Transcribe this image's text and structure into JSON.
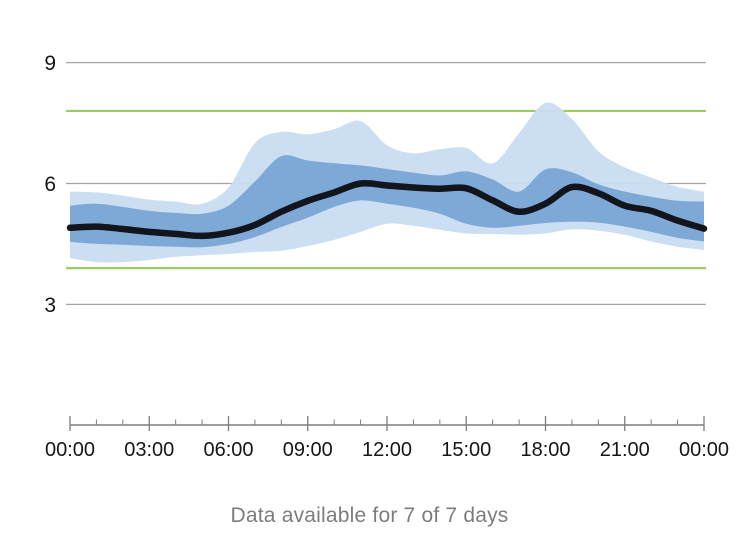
{
  "chart_data": {
    "type": "area",
    "title": "",
    "xlabel": "",
    "ylabel": "",
    "x_hours": [
      0,
      1,
      2,
      3,
      4,
      5,
      6,
      7,
      8,
      9,
      10,
      11,
      12,
      13,
      14,
      15,
      16,
      17,
      18,
      19,
      20,
      21,
      22,
      23,
      24
    ],
    "x_axis": {
      "major_tick_step_hours": 3,
      "minor_tick_step_hours": 1,
      "major_tick_labels": [
        "00:00",
        "03:00",
        "06:00",
        "09:00",
        "12:00",
        "15:00",
        "18:00",
        "21:00",
        "00:00"
      ]
    },
    "y_axis": {
      "ticks": [
        9,
        6,
        3
      ],
      "tick_labels": [
        "9",
        "6",
        "3"
      ],
      "ylim": [
        2.2,
        10.4
      ],
      "grid": true
    },
    "target_range": {
      "low": 3.9,
      "high": 7.8
    },
    "series": [
      {
        "name": "p10",
        "values": [
          4.15,
          4.05,
          4.05,
          4.1,
          4.18,
          4.22,
          4.25,
          4.3,
          4.33,
          4.45,
          4.6,
          4.8,
          5.0,
          4.95,
          4.85,
          4.76,
          4.75,
          4.73,
          4.76,
          4.86,
          4.83,
          4.73,
          4.56,
          4.43,
          4.35
        ]
      },
      {
        "name": "p25",
        "values": [
          4.55,
          4.5,
          4.48,
          4.45,
          4.43,
          4.42,
          4.5,
          4.67,
          4.92,
          5.15,
          5.42,
          5.58,
          5.5,
          5.4,
          5.25,
          5.0,
          4.9,
          4.95,
          5.02,
          5.05,
          5.03,
          4.93,
          4.8,
          4.65,
          4.56
        ]
      },
      {
        "name": "median",
        "values": [
          4.9,
          4.93,
          4.87,
          4.8,
          4.75,
          4.7,
          4.78,
          4.97,
          5.3,
          5.57,
          5.78,
          6.0,
          5.95,
          5.9,
          5.87,
          5.88,
          5.58,
          5.3,
          5.5,
          5.91,
          5.76,
          5.45,
          5.32,
          5.08,
          4.88
        ]
      },
      {
        "name": "p75",
        "values": [
          5.45,
          5.5,
          5.42,
          5.32,
          5.27,
          5.25,
          5.45,
          6.05,
          6.68,
          6.57,
          6.5,
          6.45,
          6.36,
          6.27,
          6.2,
          6.3,
          6.1,
          5.8,
          6.35,
          6.28,
          5.98,
          5.8,
          5.67,
          5.57,
          5.55
        ]
      },
      {
        "name": "p90",
        "values": [
          5.8,
          5.78,
          5.7,
          5.6,
          5.55,
          5.5,
          5.9,
          7.0,
          7.28,
          7.22,
          7.35,
          7.55,
          6.95,
          6.75,
          6.85,
          6.88,
          6.5,
          7.25,
          8.0,
          7.6,
          6.8,
          6.4,
          6.15,
          5.92,
          5.8
        ]
      }
    ],
    "bands": [
      {
        "name": "band-10-90",
        "lower": "p10",
        "upper": "p90"
      },
      {
        "name": "band-25-75",
        "lower": "p25",
        "upper": "p75"
      }
    ],
    "legend_position": "none"
  },
  "colors": {
    "band_light": "#c9ddf1",
    "band_dark": "#73a2d3",
    "median_line": "#12151c",
    "target_line": "#9bcd60",
    "grid_line": "#a5a5a5",
    "axis_line": "#636363",
    "tick_mark": "#7d7d7d",
    "tick_label": "#161616",
    "footer_text": "#7d7d7d"
  },
  "footer": {
    "text": "Data available for 7 of 7 days"
  }
}
